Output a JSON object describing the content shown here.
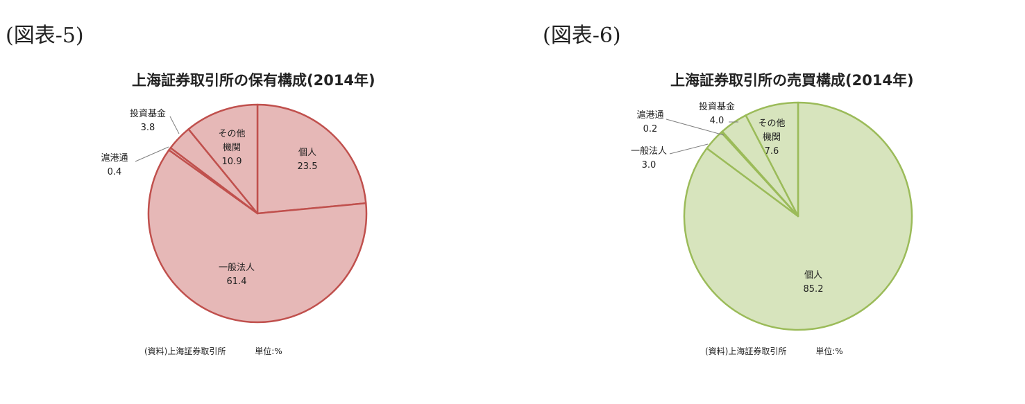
{
  "figures": [
    {
      "label": "(図表-5)",
      "title": "上海証券取引所の保有構成(2014年)",
      "source": "(資料)上海証券取引所",
      "unit": "単位:%"
    },
    {
      "label": "(図表-6)",
      "title": "上海証券取引所の売買構成(2014年)",
      "source": "(資料)上海証券取引所",
      "unit": "単位:%"
    }
  ],
  "chart_data": [
    {
      "type": "pie",
      "title": "上海証券取引所の保有構成(2014年)",
      "fill_color": "#e6b8b7",
      "stroke_color": "#c0504d",
      "labels": [
        "個人",
        "一般法人",
        "滬港通",
        "投資基金",
        "その他機関"
      ],
      "values": [
        23.5,
        61.4,
        0.4,
        3.8,
        10.9
      ],
      "start": "12 o'clock, clockwise"
    },
    {
      "type": "pie",
      "title": "上海証券取引所の売買構成(2014年)",
      "fill_color": "#d7e4bd",
      "stroke_color": "#9bbb59",
      "labels": [
        "個人",
        "一般法人",
        "滬港通",
        "投資基金",
        "その他機関"
      ],
      "values": [
        85.2,
        3.0,
        0.2,
        4.0,
        7.6
      ],
      "start": "12 o'clock, clockwise"
    }
  ]
}
